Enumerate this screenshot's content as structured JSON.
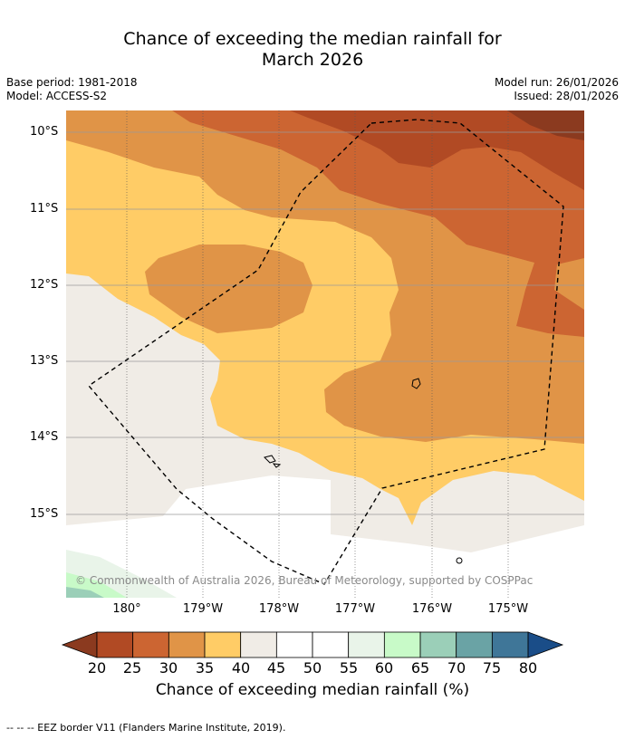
{
  "title_line1": "Chance of exceeding the median rainfall for",
  "title_line2": "March 2026",
  "meta": {
    "base_period": "Base period: 1981-2018",
    "model": "Model: ACCESS-S2",
    "model_run": "Model run: 26/01/2026",
    "issued": "Issued: 28/01/2026"
  },
  "lat_labels": [
    "10°S",
    "11°S",
    "12°S",
    "13°S",
    "14°S",
    "15°S"
  ],
  "lon_labels": [
    "180°",
    "179°W",
    "178°W",
    "177°W",
    "176°W",
    "175°W"
  ],
  "credit": "© Commonwealth of Australia 2026, Bureau of Meteorology, supported by COSPPac",
  "colorbar": {
    "ticks": [
      "20",
      "25",
      "30",
      "35",
      "40",
      "45",
      "50",
      "55",
      "60",
      "65",
      "70",
      "75",
      "80"
    ],
    "label": "Chance of exceeding median rainfall (%)",
    "colors": [
      "#8b3a1f",
      "#b14a24",
      "#cc6532",
      "#e09447",
      "#ffcc66",
      "#f0ece6",
      "#ffffff",
      "#ffffff",
      "#e9f4e9",
      "#c8fac8",
      "#9bcfb8",
      "#6aa3a5",
      "#3f7698",
      "#1a4d88"
    ]
  },
  "footer": "--  --  -- EEZ border V11 (Flanders Marine Institute, 2019)."
}
